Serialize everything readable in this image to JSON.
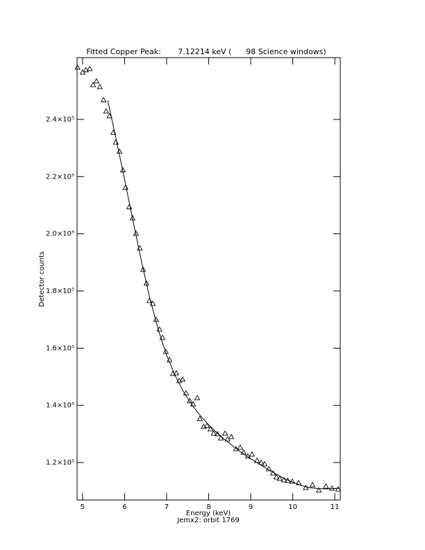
{
  "chart_data": {
    "type": "scatter",
    "title": "Fitted Copper Peak:       7.12214 keV (      98 Science windows)",
    "x_label": "Energy (keV)",
    "x_label2": "Jemx2: orbit 1769",
    "y_label": "Detector counts",
    "xlim": [
      4.87,
      11.13
    ],
    "ylim": [
      106900,
      261600
    ],
    "xticks": [
      5,
      6,
      7,
      8,
      9,
      10,
      11
    ],
    "yticks": [
      {
        "value": 120000,
        "label": "1.2×10⁵"
      },
      {
        "value": 140000,
        "label": "1.4×10⁵"
      },
      {
        "value": 160000,
        "label": "1.6×10⁵"
      },
      {
        "value": 180000,
        "label": "1.8×10⁵"
      },
      {
        "value": 200000,
        "label": "2.0×10⁵"
      },
      {
        "value": 220000,
        "label": "2.2×10⁵"
      },
      {
        "value": 240000,
        "label": "2.4×10⁵"
      }
    ],
    "grid": false,
    "color": "#000000",
    "points": {
      "x": [
        4.88,
        5.0,
        5.08,
        5.17,
        5.25,
        5.33,
        5.41,
        5.5,
        5.56,
        5.64,
        5.73,
        5.79,
        5.88,
        5.96,
        6.02,
        6.11,
        6.19,
        6.27,
        6.36,
        6.44,
        6.52,
        6.59,
        6.67,
        6.75,
        6.83,
        6.9,
        6.98,
        7.07,
        7.15,
        7.23,
        7.3,
        7.38,
        7.46,
        7.55,
        7.63,
        7.73,
        7.79,
        7.88,
        7.96,
        8.04,
        8.12,
        8.21,
        8.29,
        8.39,
        8.45,
        8.54,
        8.65,
        8.75,
        8.83,
        8.93,
        9.03,
        9.15,
        9.25,
        9.33,
        9.43,
        9.53,
        9.61,
        9.69,
        9.79,
        9.88,
        9.99,
        10.14,
        10.31,
        10.47,
        10.62,
        10.79,
        10.93,
        11.08
      ],
      "y": [
        258200,
        256500,
        257300,
        257700,
        252100,
        253400,
        251400,
        246800,
        242900,
        241200,
        235400,
        232000,
        228800,
        222300,
        216200,
        209400,
        205500,
        200100,
        195000,
        187500,
        182700,
        176600,
        175600,
        170000,
        166600,
        163700,
        158800,
        155900,
        151100,
        151300,
        148600,
        149100,
        144300,
        141600,
        140400,
        142600,
        135300,
        132600,
        132900,
        131700,
        130200,
        130000,
        128500,
        130200,
        128200,
        129000,
        124800,
        125300,
        123600,
        122200,
        122900,
        120700,
        120000,
        119500,
        117800,
        116300,
        114900,
        114400,
        113900,
        113700,
        113400,
        112900,
        111200,
        112200,
        110300,
        111700,
        111000,
        110700
      ]
    },
    "fit": {
      "x": [
        5.6,
        5.8,
        6.0,
        6.2,
        6.4,
        6.6,
        6.8,
        7.0,
        7.2,
        7.4,
        7.6,
        7.8,
        8.0,
        8.2,
        8.4,
        8.6,
        8.8,
        9.0,
        9.2,
        9.4,
        9.6,
        9.8,
        10.0,
        10.2,
        10.4,
        10.6,
        10.8,
        11.0,
        11.1
      ],
      "y": [
        246600,
        233000,
        219000,
        204500,
        190500,
        177500,
        166500,
        157500,
        150500,
        144800,
        140200,
        136400,
        133200,
        130300,
        127800,
        125500,
        123300,
        121300,
        119500,
        117700,
        116000,
        114400,
        113100,
        112000,
        111200,
        110900,
        110800,
        110900,
        111000
      ]
    }
  }
}
